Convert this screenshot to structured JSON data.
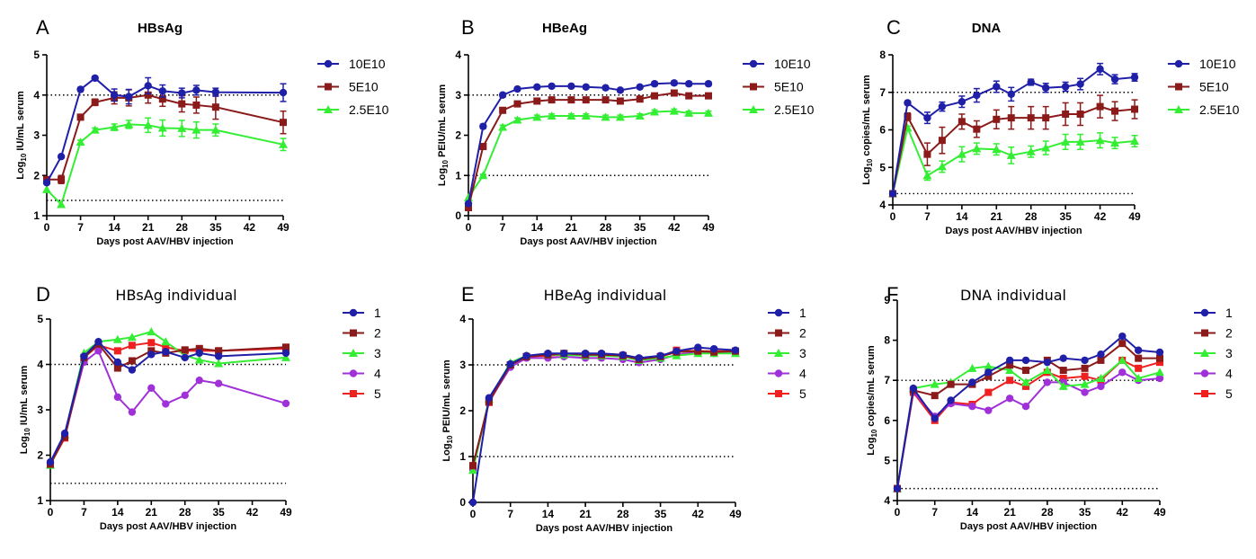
{
  "chart_data": [
    {
      "id": "A",
      "panel_label": "A",
      "type": "line",
      "title": "HBsAg",
      "xlabel": "Days post AAV/HBV injection",
      "ylabel_pre": "Log",
      "ylabel_sub": "10",
      "ylabel_post": " IU/mL serum",
      "xlim": [
        0,
        49
      ],
      "ylim": [
        1,
        5
      ],
      "xticks": [
        0,
        7,
        14,
        21,
        28,
        35,
        42,
        49
      ],
      "yticks": [
        1,
        2,
        3,
        4,
        5
      ],
      "hlines": [
        4,
        1.38
      ],
      "error_bars": true,
      "x": [
        0,
        3,
        7,
        10,
        14,
        17,
        21,
        24,
        28,
        31,
        35,
        49
      ],
      "series": [
        {
          "name": "10E10",
          "color": "#1f1fa8",
          "marker": "circle",
          "values": [
            1.82,
            2.47,
            4.14,
            4.42,
            4.0,
            3.96,
            4.23,
            4.1,
            4.05,
            4.12,
            4.07,
            4.06
          ],
          "err": [
            0,
            0,
            0.05,
            0.05,
            0.15,
            0.18,
            0.2,
            0.15,
            0.12,
            0.12,
            0.1,
            0.22
          ]
        },
        {
          "name": "5E10",
          "color": "#8b1a1a",
          "marker": "square",
          "values": [
            1.9,
            1.9,
            3.45,
            3.82,
            3.93,
            3.93,
            4.0,
            3.9,
            3.78,
            3.75,
            3.7,
            3.32
          ],
          "err": [
            0,
            0.1,
            0.05,
            0.08,
            0.15,
            0.2,
            0.2,
            0.18,
            0.2,
            0.2,
            0.3,
            0.28
          ]
        },
        {
          "name": "2.5E10",
          "color": "#33ee33",
          "marker": "triangle",
          "values": [
            1.65,
            1.28,
            2.83,
            3.13,
            3.2,
            3.27,
            3.25,
            3.18,
            3.17,
            3.13,
            3.13,
            2.77
          ],
          "err": [
            0,
            0,
            0.05,
            0.05,
            0.08,
            0.1,
            0.18,
            0.2,
            0.2,
            0.2,
            0.15,
            0.15
          ]
        }
      ]
    },
    {
      "id": "B",
      "panel_label": "B",
      "type": "line",
      "title": "HBeAg",
      "xlabel": "Days post AAV/HBV injection",
      "ylabel_pre": "Log",
      "ylabel_sub": "10",
      "ylabel_post": " PEIU/mL serum",
      "xlim": [
        0,
        49
      ],
      "ylim": [
        0,
        4
      ],
      "xticks": [
        0,
        7,
        14,
        21,
        28,
        35,
        42,
        49
      ],
      "yticks": [
        0,
        1,
        2,
        3,
        4
      ],
      "hlines": [
        3,
        1
      ],
      "error_bars": true,
      "x": [
        0,
        3,
        7,
        10,
        14,
        17,
        21,
        24,
        28,
        31,
        35,
        38,
        42,
        45,
        49
      ],
      "series": [
        {
          "name": "10E10",
          "color": "#1f1fa8",
          "marker": "circle",
          "values": [
            0.3,
            2.22,
            3.0,
            3.15,
            3.2,
            3.22,
            3.22,
            3.2,
            3.18,
            3.12,
            3.2,
            3.28,
            3.3,
            3.28,
            3.28
          ],
          "err": [
            0,
            0.05,
            0.05,
            0.04,
            0.04,
            0.04,
            0.04,
            0.04,
            0.04,
            0.04,
            0.04,
            0.05,
            0.05,
            0.05,
            0.05
          ]
        },
        {
          "name": "5E10",
          "color": "#8b1a1a",
          "marker": "square",
          "values": [
            0.2,
            1.72,
            2.62,
            2.78,
            2.85,
            2.88,
            2.88,
            2.88,
            2.88,
            2.85,
            2.9,
            2.98,
            3.05,
            2.98,
            2.98
          ],
          "err": [
            0,
            0.05,
            0.05,
            0.05,
            0.05,
            0.05,
            0.05,
            0.05,
            0.05,
            0.05,
            0.05,
            0.05,
            0.05,
            0.05,
            0.05
          ]
        },
        {
          "name": "2.5E10",
          "color": "#33ee33",
          "marker": "triangle",
          "values": [
            0.45,
            1.0,
            2.2,
            2.38,
            2.45,
            2.48,
            2.48,
            2.48,
            2.45,
            2.45,
            2.48,
            2.58,
            2.6,
            2.55,
            2.55
          ],
          "err": [
            0,
            0.03,
            0.05,
            0.05,
            0.05,
            0.05,
            0.05,
            0.05,
            0.05,
            0.05,
            0.05,
            0.05,
            0.05,
            0.05,
            0.05
          ]
        }
      ]
    },
    {
      "id": "C",
      "panel_label": "C",
      "type": "line",
      "title": "DNA",
      "xlabel": "Days post AAV/HBV injection",
      "ylabel_pre": "Log",
      "ylabel_sub": "10",
      "ylabel_post": " copies/mL serum",
      "xlim": [
        0,
        49
      ],
      "ylim": [
        4,
        8
      ],
      "xticks": [
        0,
        7,
        14,
        21,
        28,
        35,
        42,
        49
      ],
      "yticks": [
        4,
        5,
        6,
        7,
        8
      ],
      "hlines": [
        7,
        4.3
      ],
      "error_bars": true,
      "x": [
        0,
        3,
        7,
        10,
        14,
        17,
        21,
        24,
        28,
        31,
        35,
        38,
        42,
        45,
        49
      ],
      "series": [
        {
          "name": "10E10",
          "color": "#1f1fa8",
          "marker": "circle",
          "values": [
            4.3,
            6.72,
            6.32,
            6.62,
            6.75,
            6.92,
            7.15,
            6.95,
            7.27,
            7.12,
            7.15,
            7.22,
            7.62,
            7.35,
            7.4
          ],
          "err": [
            0,
            0.05,
            0.15,
            0.12,
            0.15,
            0.18,
            0.15,
            0.18,
            0.08,
            0.12,
            0.12,
            0.15,
            0.15,
            0.12,
            0.1
          ]
        },
        {
          "name": "5E10",
          "color": "#8b1a1a",
          "marker": "square",
          "values": [
            4.3,
            6.35,
            5.35,
            5.72,
            6.22,
            6.02,
            6.28,
            6.32,
            6.32,
            6.32,
            6.42,
            6.42,
            6.62,
            6.5,
            6.55
          ],
          "err": [
            0,
            0.1,
            0.3,
            0.35,
            0.2,
            0.22,
            0.25,
            0.3,
            0.3,
            0.3,
            0.3,
            0.3,
            0.3,
            0.25,
            0.25
          ]
        },
        {
          "name": "2.5E10",
          "color": "#33ee33",
          "marker": "triangle",
          "values": [
            4.3,
            6.05,
            4.78,
            5.02,
            5.35,
            5.5,
            5.48,
            5.32,
            5.42,
            5.52,
            5.68,
            5.68,
            5.72,
            5.65,
            5.7
          ],
          "err": [
            0,
            0.05,
            0.12,
            0.15,
            0.2,
            0.15,
            0.15,
            0.22,
            0.15,
            0.18,
            0.2,
            0.2,
            0.2,
            0.15,
            0.15
          ]
        }
      ]
    },
    {
      "id": "D",
      "panel_label": "D",
      "type": "line",
      "title": "HBsAg individual",
      "xlabel": "Days post AAV/HBV injection",
      "ylabel_pre": "Log",
      "ylabel_sub": "10",
      "ylabel_post": " IU/mL serum",
      "xlim": [
        0,
        49
      ],
      "ylim": [
        1,
        5
      ],
      "xticks": [
        0,
        7,
        14,
        21,
        28,
        35,
        42,
        49
      ],
      "yticks": [
        1,
        2,
        3,
        4,
        5
      ],
      "hlines": [
        4,
        1.38
      ],
      "error_bars": false,
      "x": [
        0,
        3,
        7,
        10,
        14,
        17,
        21,
        24,
        28,
        31,
        35,
        49
      ],
      "series": [
        {
          "name": "1",
          "color": "#1f1fa8",
          "marker": "circle",
          "values": [
            1.85,
            2.48,
            4.18,
            4.5,
            4.05,
            3.88,
            4.22,
            4.28,
            4.15,
            4.25,
            4.18,
            4.25
          ]
        },
        {
          "name": "2",
          "color": "#8b1a1a",
          "marker": "square",
          "values": [
            1.8,
            2.4,
            4.15,
            4.45,
            3.92,
            4.08,
            4.3,
            4.25,
            4.32,
            4.35,
            4.3,
            4.38
          ]
        },
        {
          "name": "3",
          "color": "#33ee33",
          "marker": "triangle",
          "values": [
            1.78,
            2.45,
            4.25,
            4.5,
            4.55,
            4.6,
            4.72,
            4.5,
            4.2,
            4.1,
            4.02,
            4.15
          ]
        },
        {
          "name": "4",
          "color": "#a030d8",
          "marker": "circle",
          "values": [
            1.82,
            2.42,
            4.05,
            4.3,
            3.28,
            2.95,
            3.48,
            3.13,
            3.32,
            3.65,
            3.58,
            3.14
          ]
        },
        {
          "name": "5",
          "color": "#ee2020",
          "marker": "square",
          "values": [
            1.8,
            2.38,
            4.15,
            4.42,
            4.3,
            4.42,
            4.48,
            4.38,
            4.3,
            4.3,
            4.3,
            4.35
          ]
        }
      ]
    },
    {
      "id": "E",
      "panel_label": "E",
      "type": "line",
      "title": "HBeAg individual",
      "xlabel": "Days post AAV/HBV injection",
      "ylabel_pre": "Log",
      "ylabel_sub": "10",
      "ylabel_post": " PEIU/mL serum",
      "xlim": [
        0,
        49
      ],
      "ylim": [
        0,
        4
      ],
      "xticks": [
        0,
        7,
        14,
        21,
        28,
        35,
        42,
        49
      ],
      "yticks": [
        0,
        1,
        2,
        3,
        4
      ],
      "hlines": [
        3,
        1
      ],
      "error_bars": false,
      "x": [
        0,
        3,
        7,
        10,
        14,
        17,
        21,
        24,
        28,
        31,
        35,
        38,
        42,
        45,
        49
      ],
      "series": [
        {
          "name": "1",
          "color": "#1f1fa8",
          "marker": "circle",
          "values": [
            0.0,
            2.28,
            3.02,
            3.2,
            3.25,
            3.25,
            3.25,
            3.25,
            3.22,
            3.15,
            3.2,
            3.3,
            3.38,
            3.35,
            3.32
          ]
        },
        {
          "name": "2",
          "color": "#8b1a1a",
          "marker": "square",
          "values": [
            0.8,
            2.2,
            3.0,
            3.18,
            3.22,
            3.25,
            3.22,
            3.22,
            3.2,
            3.12,
            3.18,
            3.28,
            3.3,
            3.28,
            3.3
          ]
        },
        {
          "name": "3",
          "color": "#33ee33",
          "marker": "triangle",
          "values": [
            0.7,
            2.25,
            3.05,
            3.2,
            3.22,
            3.22,
            3.2,
            3.2,
            3.18,
            3.1,
            3.15,
            3.2,
            3.25,
            3.25,
            3.25
          ]
        },
        {
          "name": "4",
          "color": "#a030d8",
          "marker": "circle",
          "values": [
            0.72,
            2.2,
            2.95,
            3.15,
            3.15,
            3.18,
            3.15,
            3.15,
            3.12,
            3.05,
            3.12,
            3.22,
            3.28,
            3.25,
            3.28
          ]
        },
        {
          "name": "5",
          "color": "#ee2020",
          "marker": "square",
          "values": [
            0.8,
            2.18,
            3.0,
            3.18,
            3.2,
            3.22,
            3.22,
            3.22,
            3.2,
            3.12,
            3.18,
            3.32,
            3.3,
            3.3,
            3.3
          ]
        }
      ]
    },
    {
      "id": "F",
      "panel_label": "F",
      "type": "line",
      "title": "DNA individual",
      "xlabel": "Days post AAV/HBV injection",
      "ylabel_pre": "Log",
      "ylabel_sub": "10",
      "ylabel_post": " copies/mL serum",
      "xlim": [
        0,
        49
      ],
      "ylim": [
        4,
        9
      ],
      "xticks": [
        0,
        7,
        14,
        21,
        28,
        35,
        42,
        49
      ],
      "yticks": [
        4,
        5,
        6,
        7,
        8,
        9
      ],
      "hlines": [
        7,
        4.3
      ],
      "error_bars": false,
      "x": [
        0,
        3,
        7,
        10,
        14,
        17,
        21,
        24,
        28,
        31,
        35,
        38,
        42,
        45,
        49
      ],
      "series": [
        {
          "name": "1",
          "color": "#1f1fa8",
          "marker": "circle",
          "values": [
            4.3,
            6.8,
            6.05,
            6.5,
            6.95,
            7.2,
            7.5,
            7.5,
            7.45,
            7.55,
            7.5,
            7.65,
            8.1,
            7.75,
            7.7
          ]
        },
        {
          "name": "2",
          "color": "#8b1a1a",
          "marker": "square",
          "values": [
            4.3,
            6.75,
            6.62,
            6.9,
            6.9,
            7.1,
            7.38,
            7.25,
            7.5,
            7.25,
            7.3,
            7.5,
            7.92,
            7.55,
            7.55
          ]
        },
        {
          "name": "3",
          "color": "#33ee33",
          "marker": "triangle",
          "values": [
            4.3,
            6.8,
            6.9,
            6.95,
            7.3,
            7.35,
            7.25,
            6.95,
            7.25,
            6.85,
            6.9,
            7.05,
            7.5,
            7.05,
            7.2
          ]
        },
        {
          "name": "4",
          "color": "#a030d8",
          "marker": "circle",
          "values": [
            4.3,
            6.72,
            6.1,
            6.42,
            6.35,
            6.25,
            6.55,
            6.35,
            6.95,
            6.95,
            6.7,
            6.85,
            7.2,
            7.0,
            7.05
          ]
        },
        {
          "name": "5",
          "color": "#ee2020",
          "marker": "square",
          "values": [
            4.3,
            6.7,
            6.0,
            6.45,
            6.4,
            6.7,
            7.0,
            6.85,
            7.2,
            7.05,
            7.1,
            7.0,
            7.5,
            7.3,
            7.45
          ]
        }
      ]
    }
  ]
}
